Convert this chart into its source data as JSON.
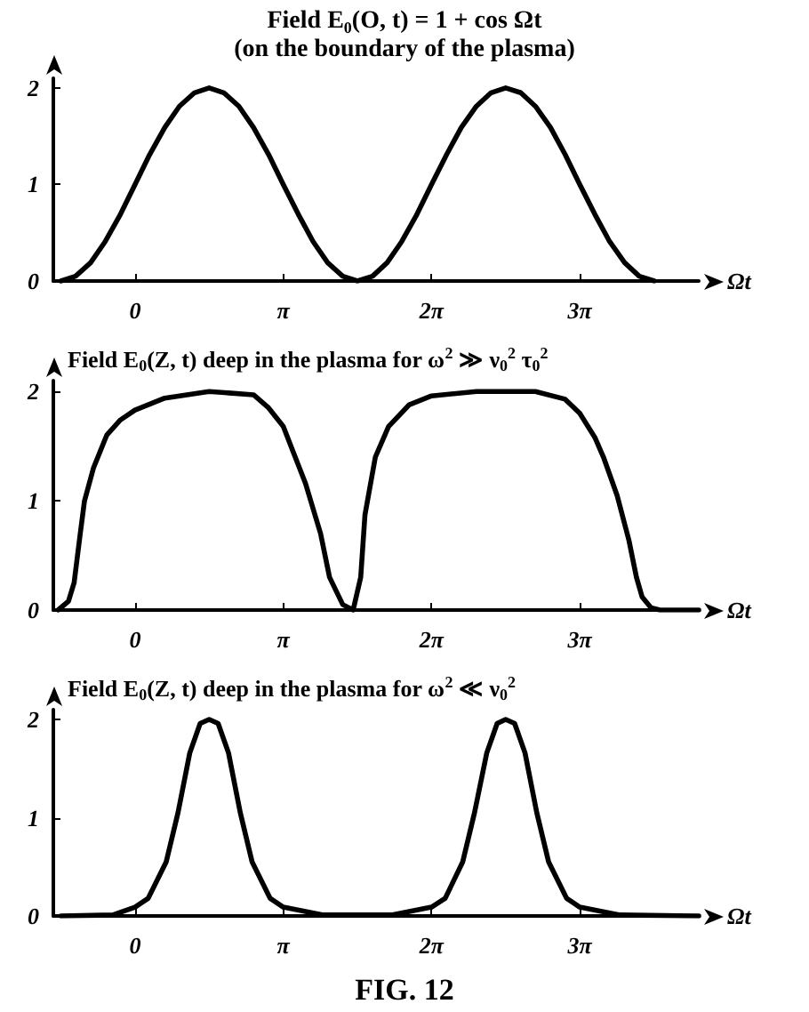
{
  "chart_data": [
    {
      "type": "line",
      "title": "Field E$_{0}$(O, t) = 1 + cos Ωt",
      "subtitle": "(on the boundary of the plasma)",
      "xlabel": "Ωt",
      "x": [
        -1.57,
        -1.26,
        -0.94,
        -0.63,
        -0.31,
        0,
        0.31,
        0.63,
        0.94,
        1.26,
        1.57,
        1.88,
        2.2,
        2.51,
        2.83,
        3.14,
        3.46,
        3.77,
        4.08,
        4.4,
        4.71,
        5.03,
        5.34,
        5.65,
        5.97,
        6.28,
        6.6,
        6.91,
        7.23,
        7.54,
        7.85,
        8.17,
        8.48,
        8.8,
        9.11,
        9.42,
        9.74,
        10.05,
        10.37,
        10.68,
        11.0
      ],
      "series": [
        {
          "color": "#000000",
          "values": [
            0,
            0.05,
            0.19,
            0.41,
            0.69,
            1,
            1.31,
            1.59,
            1.81,
            1.95,
            2,
            1.95,
            1.81,
            1.59,
            1.31,
            1,
            0.69,
            0.41,
            0.19,
            0.05,
            0,
            0.05,
            0.19,
            0.41,
            0.69,
            1,
            1.31,
            1.59,
            1.81,
            1.95,
            2,
            1.95,
            1.81,
            1.59,
            1.31,
            1,
            0.69,
            0.41,
            0.19,
            0.05,
            0
          ]
        }
      ],
      "xlim": [
        -1.73,
        11.94
      ],
      "xticks": [
        {
          "value": 0,
          "label": "0"
        },
        {
          "value": 3.14,
          "label": "π"
        },
        {
          "value": 6.28,
          "label": "2π"
        },
        {
          "value": 9.42,
          "label": "3π"
        }
      ],
      "ylim": [
        0,
        2.1
      ],
      "yticks": [
        0,
        1,
        2
      ],
      "grid": false,
      "marker": "none",
      "line_style": "solid"
    },
    {
      "type": "line",
      "title": "Field E$_{0}$(Z, t) deep in the plasma for ω$^{2}$ ≫ ν$_{0}$$^{2}$ τ$_{0}$$^{2}$",
      "xlabel": "Ωt",
      "x": [
        -1.63,
        -1.41,
        -1.29,
        -1.16,
        -1.07,
        -0.88,
        -0.6,
        -0.31,
        0,
        0.63,
        1.57,
        2.51,
        2.83,
        3.14,
        3.61,
        3.93,
        4.12,
        4.4,
        4.62,
        4.78,
        4.87,
        5.09,
        5.37,
        5.81,
        6.28,
        7.23,
        8.48,
        9.11,
        9.42,
        9.74,
        9.93,
        10.21,
        10.46,
        10.62,
        10.74,
        10.93,
        11.12,
        11.94
      ],
      "series": [
        {
          "color": "#000000",
          "values": [
            0,
            0.08,
            0.25,
            0.7,
            1,
            1.3,
            1.6,
            1.74,
            1.83,
            1.94,
            2,
            1.97,
            1.85,
            1.68,
            1.16,
            0.7,
            0.3,
            0.05,
            0,
            0.3,
            0.87,
            1.4,
            1.68,
            1.88,
            1.96,
            2,
            2,
            1.93,
            1.8,
            1.58,
            1.39,
            1.05,
            0.64,
            0.3,
            0.12,
            0.02,
            0,
            0
          ]
        }
      ],
      "xlim": [
        -1.73,
        11.94
      ],
      "xticks": [
        0,
        {
          "value": 3.14,
          "label": "π"
        },
        {
          "value": 6.28,
          "label": "2π"
        },
        {
          "value": 9.42,
          "label": "3π"
        }
      ],
      "ylim": [
        0,
        2.1
      ],
      "yticks": [
        0,
        1,
        2
      ],
      "grid": false,
      "marker": "none",
      "line_style": "solid"
    },
    {
      "type": "line",
      "title": "Field E$_{0}$(Z, t) deep in the plasma for ω$^{2}$ ≪ ν$_{0}$$^{2}$",
      "xlabel": "Ωt",
      "annotations": [
        "FIG. 12"
      ],
      "x": [
        -1.57,
        -0.47,
        0,
        0.28,
        0.66,
        0.91,
        1.16,
        1.38,
        1.57,
        1.76,
        1.98,
        2.23,
        2.48,
        2.86,
        3.14,
        3.99,
        5.43,
        6.28,
        6.57,
        6.94,
        7.19,
        7.45,
        7.67,
        7.85,
        8.04,
        8.26,
        8.51,
        8.76,
        9.14,
        9.42,
        10.27,
        11.94
      ],
      "series": [
        {
          "color": "#000000",
          "values": [
            0,
            0.01,
            0.09,
            0.18,
            0.55,
            1.05,
            1.66,
            1.96,
            2,
            1.96,
            1.66,
            1.05,
            0.55,
            0.18,
            0.09,
            0.01,
            0.01,
            0.09,
            0.18,
            0.55,
            1.05,
            1.66,
            1.96,
            2,
            1.96,
            1.66,
            1.05,
            0.55,
            0.18,
            0.09,
            0.01,
            0
          ]
        }
      ],
      "xlim": [
        -1.73,
        11.94
      ],
      "xticks": [
        0,
        {
          "value": 3.14,
          "label": "π"
        },
        {
          "value": 6.28,
          "label": "2π"
        },
        {
          "value": 9.42,
          "label": "3π"
        }
      ],
      "ylim": [
        0,
        2.1
      ],
      "yticks": [
        0,
        1,
        2
      ],
      "grid": false,
      "marker": "none",
      "line_style": "solid"
    }
  ]
}
